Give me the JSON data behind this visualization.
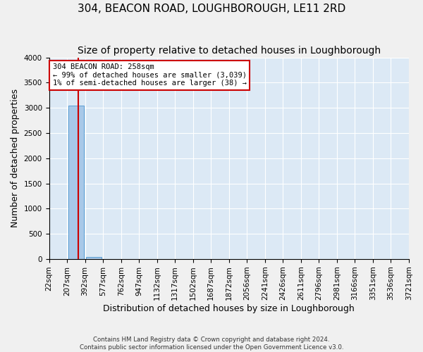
{
  "title": "304, BEACON ROAD, LOUGHBOROUGH, LE11 2RD",
  "subtitle": "Size of property relative to detached houses in Loughborough",
  "xlabel": "Distribution of detached houses by size in Loughborough",
  "ylabel": "Number of detached properties",
  "footnote1": "Contains HM Land Registry data © Crown copyright and database right 2024.",
  "footnote2": "Contains public sector information licensed under the Open Government Licence v3.0.",
  "bin_labels": [
    "22sqm",
    "207sqm",
    "392sqm",
    "577sqm",
    "762sqm",
    "947sqm",
    "1132sqm",
    "1317sqm",
    "1502sqm",
    "1687sqm",
    "1872sqm",
    "2056sqm",
    "2241sqm",
    "2426sqm",
    "2611sqm",
    "2796sqm",
    "2981sqm",
    "3166sqm",
    "3351sqm",
    "3536sqm",
    "3721sqm"
  ],
  "bar_values": [
    0,
    3039,
    38,
    0,
    0,
    0,
    0,
    0,
    0,
    0,
    0,
    0,
    0,
    0,
    0,
    0,
    0,
    0,
    0,
    0
  ],
  "bar_color": "#a8c8e8",
  "bar_edge_color": "#5a9fd4",
  "ylim": [
    0,
    4000
  ],
  "yticks": [
    0,
    500,
    1000,
    1500,
    2000,
    2500,
    3000,
    3500,
    4000
  ],
  "vline_color": "#cc0000",
  "vline_xdata": 1.13,
  "annotation_text": "304 BEACON ROAD: 258sqm\n← 99% of detached houses are smaller (3,039)\n1% of semi-detached houses are larger (38) →",
  "annotation_box_color": "#cc0000",
  "background_color": "#dce9f5",
  "grid_color": "#ffffff",
  "title_fontsize": 11,
  "subtitle_fontsize": 10,
  "tick_fontsize": 7.5,
  "label_fontsize": 9
}
